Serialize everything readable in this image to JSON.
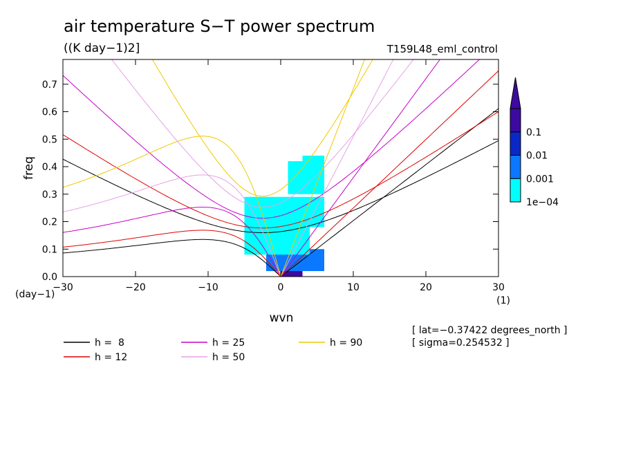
{
  "chart_data": {
    "type": "heatmap",
    "title": "air temperature S−T power spectrum",
    "units_label": "((K day−1)2]",
    "run_label": "T159L48_eml_control",
    "xlabel": "wvn",
    "ylabel": "freq",
    "x_unit_label": "(1)",
    "y_unit_label": "(day−1)",
    "xlim": [
      -30,
      30
    ],
    "ylim": [
      0,
      0.79
    ],
    "x_ticks": [
      "−30",
      "−20",
      "−10",
      "0",
      "10",
      "20",
      "30"
    ],
    "x_tick_values": [
      -30,
      -20,
      -10,
      0,
      10,
      20,
      30
    ],
    "y_ticks": [
      "0.0",
      "0.1",
      "0.2",
      "0.3",
      "0.4",
      "0.5",
      "0.6",
      "0.7"
    ],
    "y_tick_values": [
      0,
      0.1,
      0.2,
      0.3,
      0.4,
      0.5,
      0.6,
      0.7
    ],
    "colorbar": {
      "labels": [
        "1e−04",
        "0.001",
        "0.01",
        "0.1"
      ],
      "levels": [
        0.0001,
        0.001,
        0.01,
        0.1
      ],
      "colors": [
        "#00ffff",
        "#0a78ff",
        "#0a28c8",
        "#3c0aa0"
      ]
    },
    "dispersion_curves": [
      {
        "label": "h =  8",
        "h": 8,
        "color": "#000000"
      },
      {
        "label": "h = 12",
        "h": 12,
        "color": "#e00000"
      },
      {
        "label": "h = 25",
        "h": 25,
        "color": "#c800c8"
      },
      {
        "label": "h = 50",
        "h": 50,
        "color": "#e6a0e6"
      },
      {
        "label": "h = 90",
        "h": 90,
        "color": "#f0c800"
      }
    ],
    "spectral_patches": [
      {
        "x": [
          0,
          3
        ],
        "y": [
          0.0,
          0.05
        ],
        "level": 3
      },
      {
        "x": [
          -1,
          2
        ],
        "y": [
          0.04,
          0.08
        ],
        "level": 2
      },
      {
        "x": [
          -2,
          6
        ],
        "y": [
          0.02,
          0.1
        ],
        "level": 1
      },
      {
        "x": [
          -5,
          4
        ],
        "y": [
          0.08,
          0.18
        ],
        "level": 0
      },
      {
        "x": [
          -5,
          6
        ],
        "y": [
          0.18,
          0.29
        ],
        "level": 0
      },
      {
        "x": [
          1,
          6
        ],
        "y": [
          0.3,
          0.42
        ],
        "level": 0
      },
      {
        "x": [
          3,
          6
        ],
        "y": [
          0.38,
          0.44
        ],
        "level": 0
      }
    ],
    "annotations": [
      "[ lat=−0.37422 degrees_north ]",
      "[ sigma=0.254532 ]"
    ]
  }
}
